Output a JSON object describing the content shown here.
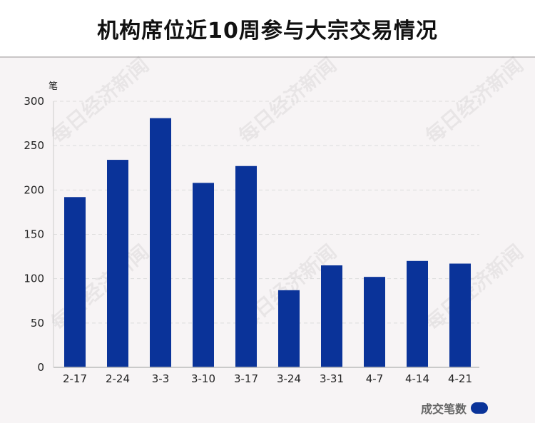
{
  "title": "机构席位近10周参与大宗交易情况",
  "watermark": "每日经济新闻",
  "chart_data": {
    "type": "bar",
    "categories": [
      "2-17",
      "2-24",
      "3-3",
      "3-10",
      "3-17",
      "3-24",
      "3-31",
      "4-7",
      "4-14",
      "4-21"
    ],
    "series": [
      {
        "name": "成交笔数",
        "values": [
          192,
          234,
          281,
          208,
          227,
          87,
          115,
          102,
          120,
          117
        ],
        "color": "#0a3399"
      }
    ],
    "unit": "笔",
    "ylim": [
      0,
      300
    ],
    "yticks": [
      0,
      50,
      100,
      150,
      200,
      250,
      300
    ],
    "grid": true,
    "legend_position": "bottom-right"
  }
}
